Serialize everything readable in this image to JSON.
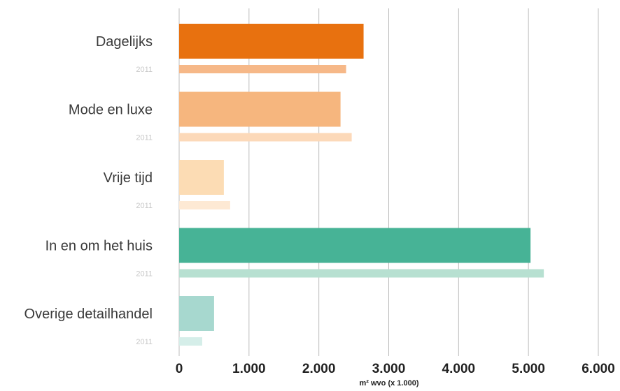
{
  "chart_data": {
    "type": "bar",
    "orientation": "horizontal",
    "xlabel": "m² wvo (x 1.000)",
    "xlim": [
      0,
      6000
    ],
    "ticks": [
      0,
      1000,
      2000,
      3000,
      4000,
      5000,
      6000
    ],
    "tick_labels": [
      "0",
      "1.000",
      "2.000",
      "3.000",
      "4.000",
      "5.000",
      "6.000"
    ],
    "grid": true,
    "comparison_label": "2011",
    "categories": [
      "Dagelijks",
      "Mode en luxe",
      "Vrije tijd",
      "In en om het huis",
      "Overige detailhandel"
    ],
    "series": [
      {
        "values": [
          2640,
          2310,
          640,
          5030,
          500
        ]
      },
      {
        "name": "2011",
        "values": [
          2390,
          2470,
          730,
          5220,
          330
        ]
      }
    ],
    "colors": {
      "current": [
        "#e8710f",
        "#f6b67e",
        "#fcdcb4",
        "#47b396",
        "#a7d8cf"
      ],
      "comparison": [
        "#f6b888",
        "#fcd9b9",
        "#fde9d4",
        "#b7e0d1",
        "#d5eee9"
      ]
    }
  }
}
